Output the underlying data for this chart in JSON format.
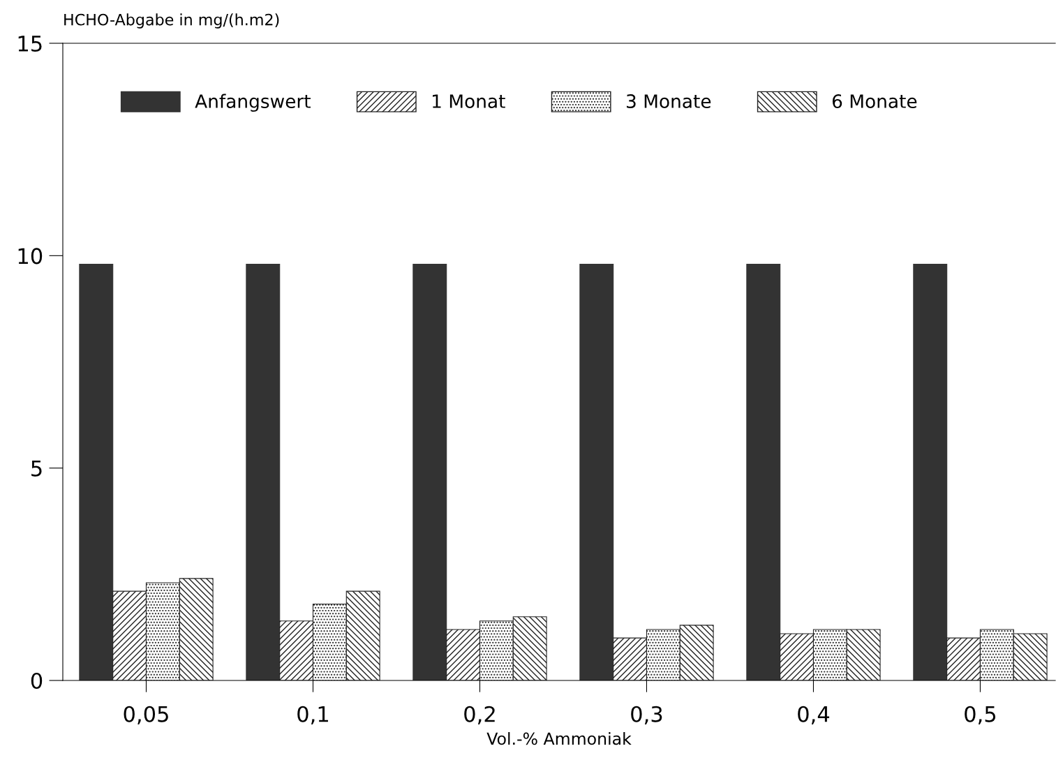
{
  "chart_data": {
    "type": "bar",
    "ylabel": "HCHO-Abgabe in mg/(h.m2)",
    "xlabel": "Vol.-% Ammoniak",
    "categories": [
      "0,05",
      "0,1",
      "0,2",
      "0,3",
      "0,4",
      "0,5"
    ],
    "series": [
      {
        "name": "Anfangswert",
        "color": "#333333",
        "values": [
          9.8,
          9.8,
          9.8,
          9.8,
          9.8,
          9.8
        ]
      },
      {
        "name": "1 Monat",
        "color": "#222222",
        "values": [
          2.1,
          1.4,
          1.2,
          1.0,
          1.1,
          1.0
        ]
      },
      {
        "name": "3 Monate",
        "color": "#222222",
        "values": [
          2.3,
          1.8,
          1.4,
          1.2,
          1.2,
          1.2
        ]
      },
      {
        "name": "6 Monate",
        "color": "#222222",
        "values": [
          2.4,
          2.1,
          1.5,
          1.3,
          1.2,
          1.1
        ]
      }
    ],
    "ylim": [
      0,
      15
    ],
    "yticks": [
      0,
      5,
      10,
      15
    ],
    "grid": false,
    "legend": "top"
  }
}
